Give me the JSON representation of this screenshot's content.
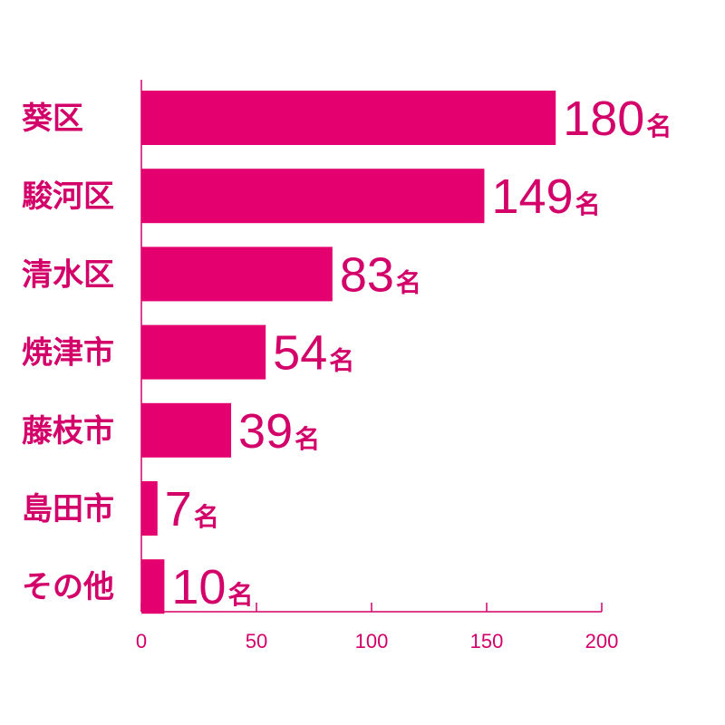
{
  "chart_data": {
    "type": "bar",
    "orientation": "horizontal",
    "categories": [
      "葵区",
      "駿河区",
      "清水区",
      "焼津市",
      "藤枝市",
      "島田市",
      "その他"
    ],
    "values": [
      180,
      149,
      83,
      54,
      39,
      7,
      10
    ],
    "value_labels": [
      "180",
      "149",
      "83",
      "54",
      "39",
      "7",
      "10"
    ],
    "unit": "名",
    "xlim": [
      0,
      200
    ],
    "x_ticks": [
      0,
      50,
      100,
      150,
      200
    ],
    "x_tick_labels": [
      "0",
      "50",
      "100",
      "150",
      "200"
    ],
    "grid": false,
    "colors": {
      "bar": "#E4006E",
      "text": "#D4006A",
      "axis": "#D4006A"
    }
  }
}
